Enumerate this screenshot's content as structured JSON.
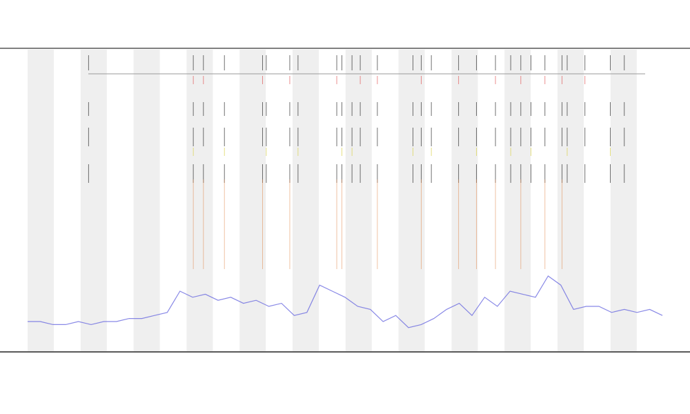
{
  "chart_data": {
    "type": "line",
    "xlim": [
      0,
      100
    ],
    "ylim": [
      0,
      100
    ],
    "x": [
      0,
      2,
      4,
      6,
      8,
      10,
      12,
      14,
      16,
      18,
      20,
      22,
      24,
      26,
      28,
      30,
      32,
      34,
      36,
      38,
      40,
      42,
      44,
      46,
      48,
      50,
      52,
      54,
      56,
      58,
      60,
      62,
      64,
      66,
      68,
      70,
      72,
      74,
      76,
      78,
      80,
      82,
      84,
      86,
      88,
      90,
      92,
      94,
      96,
      98,
      100
    ],
    "series": [
      {
        "color": "#6a6ae0",
        "values": [
          10,
          10,
          9,
          9,
          10,
          9,
          10,
          10,
          11,
          11,
          12,
          13,
          20,
          18,
          19,
          17,
          18,
          16,
          17,
          15,
          16,
          12,
          13,
          22,
          20,
          18,
          15,
          14,
          10,
          12,
          8,
          9,
          11,
          14,
          16,
          12,
          18,
          15,
          20,
          19,
          18,
          25,
          22,
          14,
          15,
          15,
          13,
          14,
          13,
          14,
          12
        ]
      }
    ],
    "tracks": [
      {
        "color": "#222222",
        "x": [
          9.6,
          26.1,
          27.7,
          31,
          37,
          37.6,
          41.3,
          42.6,
          48.7,
          49.5,
          51.1,
          52.4,
          55.1,
          60.7,
          62,
          63.6,
          67.9,
          70.7,
          73.7,
          76.1,
          77.7,
          79.3,
          81.5,
          84.2,
          85,
          87.8,
          91.8,
          94
        ]
      },
      {
        "color": "#e05050",
        "x": [
          26.1,
          27.7,
          37,
          41.3,
          48.7,
          52.4,
          55.1,
          62,
          67.9,
          73.7,
          77.7,
          81.5,
          84.2,
          87.8
        ]
      },
      {
        "color": "#d8d040",
        "x": [
          26.1,
          31,
          37.6,
          42.6,
          49.5,
          51.1,
          60.7,
          63.6,
          70.7,
          76.1,
          79.3,
          85,
          91.8
        ]
      },
      {
        "color": "#e08040",
        "x": [
          26.1,
          27.7,
          31,
          37,
          41.3,
          48.7,
          49.5,
          55.1,
          62,
          67.9,
          70.7,
          73.7,
          77.7,
          81.5,
          84.2
        ]
      }
    ]
  }
}
